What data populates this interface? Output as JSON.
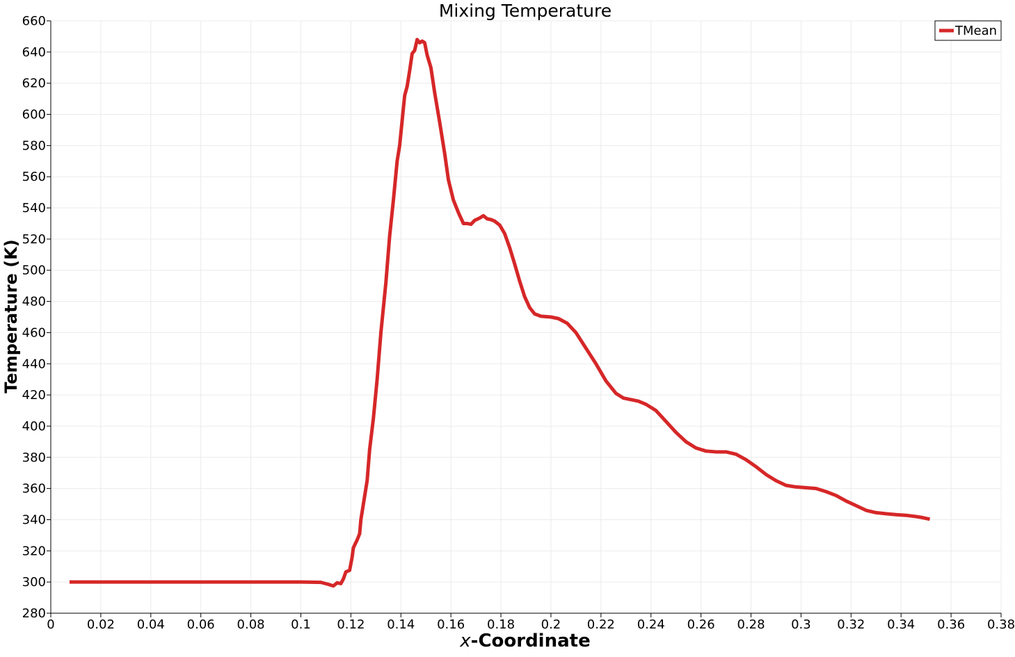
{
  "chart_data": {
    "type": "line",
    "title": "Mixing Temperature",
    "xlabel_italic": "x",
    "xlabel_rest": "-Coordinate",
    "ylabel": "Temperature (K)",
    "xlim": [
      0,
      0.38
    ],
    "ylim": [
      280,
      660
    ],
    "grid": true,
    "legend_position": "top-right",
    "x_ticks": [
      0,
      0.02,
      0.04,
      0.06,
      0.08,
      0.1,
      0.12,
      0.14,
      0.16,
      0.18,
      0.2,
      0.22,
      0.24,
      0.26,
      0.28,
      0.3,
      0.32,
      0.34,
      0.36,
      0.38
    ],
    "x_tick_labels": [
      "0",
      "0.02",
      "0.04",
      "0.06",
      "0.08",
      "0.1",
      "0.12",
      "0.14",
      "0.16",
      "0.18",
      "0.2",
      "0.22",
      "0.24",
      "0.26",
      "0.28",
      "0.3",
      "0.32",
      "0.34",
      "0.36",
      "0.38"
    ],
    "y_ticks": [
      280,
      300,
      320,
      340,
      360,
      380,
      400,
      420,
      440,
      460,
      480,
      500,
      520,
      540,
      560,
      580,
      600,
      620,
      640,
      660
    ],
    "y_tick_labels": [
      "280",
      "300",
      "320",
      "340",
      "360",
      "380",
      "400",
      "420",
      "440",
      "460",
      "480",
      "500",
      "520",
      "540",
      "560",
      "580",
      "600",
      "620",
      "640",
      "660"
    ],
    "series": [
      {
        "name": "TMean",
        "color": "#d62728",
        "points": [
          [
            0.0075,
            300
          ],
          [
            0.02,
            300
          ],
          [
            0.04,
            300
          ],
          [
            0.06,
            300
          ],
          [
            0.08,
            300
          ],
          [
            0.1,
            300
          ],
          [
            0.108,
            299.8
          ],
          [
            0.111,
            298.5
          ],
          [
            0.113,
            297.5
          ],
          [
            0.1145,
            299.5
          ],
          [
            0.116,
            299
          ],
          [
            0.117,
            302
          ],
          [
            0.118,
            306.5
          ],
          [
            0.1195,
            307.5
          ],
          [
            0.1205,
            316
          ],
          [
            0.121,
            322
          ],
          [
            0.1225,
            327
          ],
          [
            0.1235,
            331
          ],
          [
            0.124,
            340
          ],
          [
            0.125,
            350
          ],
          [
            0.1265,
            365
          ],
          [
            0.1275,
            385
          ],
          [
            0.129,
            405
          ],
          [
            0.1305,
            430
          ],
          [
            0.132,
            460
          ],
          [
            0.134,
            492
          ],
          [
            0.1355,
            522
          ],
          [
            0.137,
            545
          ],
          [
            0.1385,
            570
          ],
          [
            0.1395,
            580
          ],
          [
            0.1405,
            596
          ],
          [
            0.1415,
            612
          ],
          [
            0.1425,
            618
          ],
          [
            0.1435,
            628
          ],
          [
            0.1445,
            639
          ],
          [
            0.1455,
            641
          ],
          [
            0.1465,
            648
          ],
          [
            0.1475,
            646
          ],
          [
            0.1485,
            647
          ],
          [
            0.1495,
            646
          ],
          [
            0.1505,
            638
          ],
          [
            0.152,
            630
          ],
          [
            0.1535,
            614
          ],
          [
            0.1555,
            595
          ],
          [
            0.1575,
            575
          ],
          [
            0.159,
            558
          ],
          [
            0.161,
            545
          ],
          [
            0.163,
            537
          ],
          [
            0.165,
            530
          ],
          [
            0.1665,
            530
          ],
          [
            0.168,
            529.5
          ],
          [
            0.1695,
            532
          ],
          [
            0.1715,
            533.5
          ],
          [
            0.173,
            535
          ],
          [
            0.1745,
            533
          ],
          [
            0.176,
            532.5
          ],
          [
            0.1775,
            531.5
          ],
          [
            0.1795,
            529
          ],
          [
            0.1815,
            523.5
          ],
          [
            0.1835,
            514.5
          ],
          [
            0.1855,
            504
          ],
          [
            0.1875,
            493
          ],
          [
            0.1895,
            483
          ],
          [
            0.1915,
            476
          ],
          [
            0.1935,
            472
          ],
          [
            0.196,
            470.5
          ],
          [
            0.2,
            470
          ],
          [
            0.203,
            469
          ],
          [
            0.2065,
            466
          ],
          [
            0.21,
            460
          ],
          [
            0.214,
            450
          ],
          [
            0.218,
            440
          ],
          [
            0.222,
            429
          ],
          [
            0.226,
            421
          ],
          [
            0.229,
            418
          ],
          [
            0.232,
            417
          ],
          [
            0.235,
            416
          ],
          [
            0.238,
            414
          ],
          [
            0.242,
            410
          ],
          [
            0.246,
            403
          ],
          [
            0.25,
            396
          ],
          [
            0.254,
            390
          ],
          [
            0.258,
            386
          ],
          [
            0.262,
            384
          ],
          [
            0.266,
            383.5
          ],
          [
            0.27,
            383.5
          ],
          [
            0.274,
            382
          ],
          [
            0.278,
            378.5
          ],
          [
            0.282,
            374
          ],
          [
            0.286,
            369
          ],
          [
            0.29,
            365
          ],
          [
            0.294,
            362
          ],
          [
            0.298,
            361
          ],
          [
            0.302,
            360.5
          ],
          [
            0.306,
            360
          ],
          [
            0.31,
            358
          ],
          [
            0.314,
            355.5
          ],
          [
            0.318,
            352
          ],
          [
            0.322,
            349
          ],
          [
            0.326,
            346
          ],
          [
            0.33,
            344.5
          ],
          [
            0.334,
            343.8
          ],
          [
            0.338,
            343.2
          ],
          [
            0.342,
            342.8
          ],
          [
            0.346,
            342
          ],
          [
            0.348,
            341.5
          ],
          [
            0.3515,
            340.3
          ]
        ]
      }
    ]
  }
}
